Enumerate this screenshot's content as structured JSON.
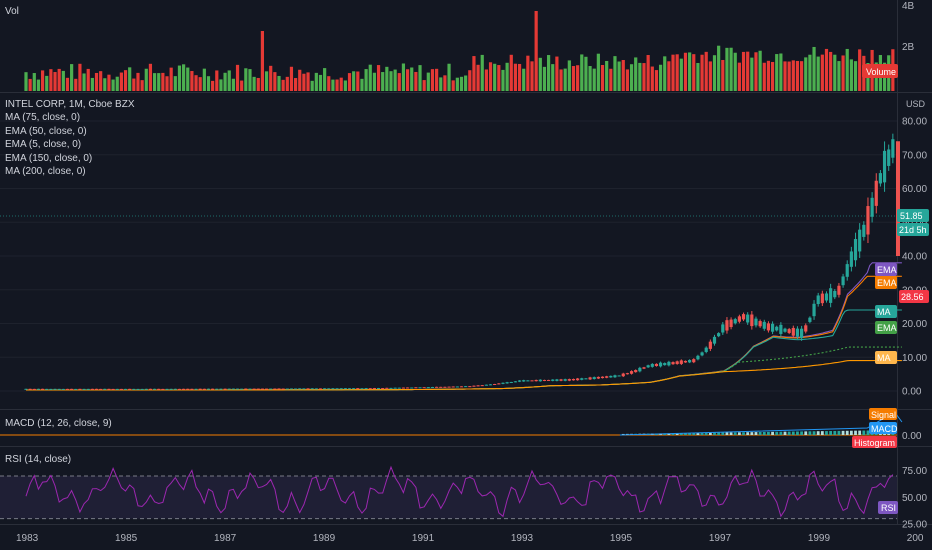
{
  "volume_pane": {
    "title": "Vol",
    "scale_labels": [
      "4B",
      "2B"
    ],
    "tag": "Volume"
  },
  "main_pane": {
    "title": "INTEL CORP, 1M, Cboe BZX",
    "currency": "USD",
    "indicators": [
      "MA (75, close, 0)",
      "EMA (50, close, 0)",
      "EMA (5, close, 0)",
      "EMA (150, close, 0)",
      "MA (200, close, 0)"
    ],
    "price_labels": [
      "80.00",
      "70.00",
      "60.00",
      "50.00",
      "40.00",
      "30.00",
      "20.00",
      "10.00",
      "0.00"
    ],
    "last_price": "51.85",
    "countdown": "21d 5h",
    "tags": [
      {
        "label": "EMA",
        "color": "#7e57c2"
      },
      {
        "label": "EMA",
        "color": "#f57c00"
      },
      {
        "label": "28.56",
        "color": "#f23645",
        "kind": "price"
      },
      {
        "label": "MA",
        "color": "#26a69a"
      },
      {
        "label": "EMA",
        "color": "#43a047"
      },
      {
        "label": "MA",
        "color": "#ffb74d"
      }
    ]
  },
  "macd_pane": {
    "title": "MACD (12, 26, close, 9)",
    "scale_label": "0.00",
    "tags": [
      {
        "label": "Signal",
        "color": "#f57c00"
      },
      {
        "label": "MACD",
        "color": "#2196f3"
      },
      {
        "label": "Histogram",
        "color": "#f23645"
      }
    ]
  },
  "rsi_pane": {
    "title": "RSI (14, close)",
    "scale_labels": [
      "75.00",
      "50.00",
      "25.00"
    ],
    "tag": "RSI"
  },
  "time_axis": [
    "1983",
    "1985",
    "1987",
    "1989",
    "1991",
    "1993",
    "1995",
    "1997",
    "1999",
    "200"
  ],
  "colors": {
    "background": "#131722",
    "up": "#26a69a",
    "down": "#ef5350",
    "volume_up": "#4caf50",
    "volume_down": "#e53935",
    "rsi_line": "#9c27b0",
    "grid": "#2a2e39"
  },
  "chart_data": {
    "type": "candlestick",
    "symbol": "INTEL CORP",
    "interval": "1M",
    "exchange": "Cboe BZX",
    "x_range": [
      1983,
      2000.6
    ],
    "y_range_price": [
      0,
      80
    ],
    "price_anchors": [
      {
        "t": 1983.0,
        "p": 0.6
      },
      {
        "t": 1986.0,
        "p": 0.6
      },
      {
        "t": 1988.0,
        "p": 0.7
      },
      {
        "t": 1990.0,
        "p": 0.8
      },
      {
        "t": 1992.0,
        "p": 1.4
      },
      {
        "t": 1993.0,
        "p": 3.0
      },
      {
        "t": 1994.0,
        "p": 3.3
      },
      {
        "t": 1995.0,
        "p": 4.5
      },
      {
        "t": 1995.6,
        "p": 7.5
      },
      {
        "t": 1996.5,
        "p": 9.0
      },
      {
        "t": 1997.1,
        "p": 19.0
      },
      {
        "t": 1997.5,
        "p": 22.0
      },
      {
        "t": 1998.0,
        "p": 19.0
      },
      {
        "t": 1998.7,
        "p": 17.0
      },
      {
        "t": 1999.0,
        "p": 27.0
      },
      {
        "t": 1999.4,
        "p": 29.0
      },
      {
        "t": 1999.7,
        "p": 40.0
      },
      {
        "t": 2000.0,
        "p": 50.0
      },
      {
        "t": 2000.3,
        "p": 65.0
      },
      {
        "t": 2000.55,
        "p": 73.0
      },
      {
        "t": 2000.7,
        "p": 40.0
      }
    ],
    "ma_curves": [
      {
        "name": "EMA (5)",
        "color": "#7e57c2",
        "end": 38
      },
      {
        "name": "EMA (50)",
        "color": "#f57c00",
        "end": 34
      },
      {
        "name": "MA (75)",
        "color": "#26a69a",
        "end": 24
      },
      {
        "name": "EMA (150)",
        "color": "#43a047",
        "end": 13
      },
      {
        "name": "MA (200)",
        "color": "#ff9800",
        "end": 9
      }
    ],
    "rsi_levels": [
      70,
      30
    ],
    "rsi_range": [
      25,
      85
    ]
  }
}
